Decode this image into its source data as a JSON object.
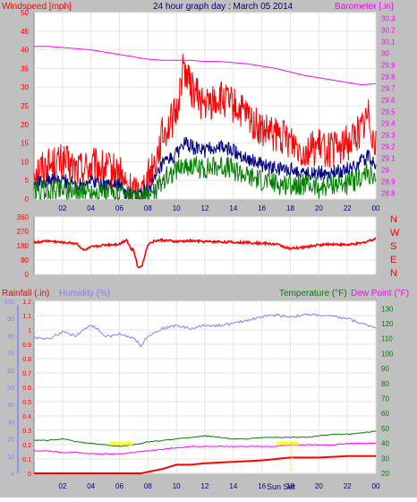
{
  "header": {
    "left_label": "Windspeed [mph]",
    "title": "24 hour graph day : March 05 2014",
    "right_label": "Barometer [.in]"
  },
  "colors": {
    "background": "#c0c0c0",
    "plot_bg": "#ffffff",
    "wind_high": "#ff0000",
    "wind_avg": "#000080",
    "wind_low": "#008000",
    "barometer": "#ff00ff",
    "direction": "#ff0000",
    "humidity": "#8080ff",
    "temperature": "#008000",
    "dewpoint": "#ff00ff",
    "rainfall": "#ff0000",
    "sun_marker": "#ffff00",
    "axis_text": "#000080"
  },
  "direction_letters": [
    "N",
    "W",
    "S",
    "E",
    "N"
  ],
  "bottom_labels": {
    "rainfall": "Rainfall (.in)",
    "humidity": "Humidity (%)",
    "temperature": "Temperature (°F)",
    "dewpoint": "Dew Point (°F)"
  },
  "sun_annotation": "Sun Set",
  "chart_data": [
    {
      "type": "line",
      "name": "wind-barometer",
      "x_ticks": [
        "02",
        "04",
        "06",
        "08",
        "10",
        "12",
        "14",
        "16",
        "18",
        "20",
        "22",
        "00"
      ],
      "x_range_hours": [
        0,
        24
      ],
      "y_left_ticks": [
        0,
        5,
        10,
        15,
        20,
        25,
        30,
        35,
        40,
        45,
        50
      ],
      "y_left_range": [
        0,
        50
      ],
      "y_right_ticks": [
        "28.8",
        "28.9",
        "29",
        "29.1",
        "29.2",
        "29.3",
        "29.4",
        "29.5",
        "29.6",
        "29.7",
        "29.8",
        "29.9",
        "30",
        "30.1",
        "30.2",
        "30.3"
      ],
      "y_right_range": [
        28.75,
        30.35
      ],
      "series": [
        {
          "key": "wind_high",
          "hours": [
            0,
            1,
            2,
            3,
            4,
            5,
            6,
            6.5,
            7,
            7.5,
            8,
            8.5,
            9,
            10,
            10.5,
            11,
            12,
            13,
            14,
            15,
            16,
            17,
            18,
            19,
            20,
            21,
            22,
            23,
            23.5,
            24
          ],
          "values": [
            8,
            9,
            10,
            8,
            9,
            8,
            7,
            3,
            2,
            2,
            6,
            10,
            17,
            23,
            36,
            30,
            25,
            27,
            25,
            22,
            18,
            17,
            16,
            13,
            14,
            13,
            15,
            19,
            23,
            14
          ]
        },
        {
          "key": "wind_avg",
          "hours": [
            0,
            1,
            2,
            3,
            4,
            5,
            6,
            6.5,
            7,
            7.5,
            8,
            8.5,
            9,
            10,
            10.5,
            11,
            12,
            13,
            14,
            15,
            16,
            17,
            18,
            19,
            20,
            21,
            22,
            23,
            23.5,
            24
          ],
          "values": [
            4,
            5,
            5,
            4,
            5,
            4,
            4,
            1,
            1,
            1,
            3,
            5,
            9,
            12,
            15,
            14,
            13,
            14,
            13,
            11,
            9,
            8,
            8,
            7,
            7,
            7,
            8,
            10,
            12,
            8
          ]
        },
        {
          "key": "wind_low",
          "hours": [
            0,
            1,
            2,
            3,
            4,
            5,
            6,
            6.5,
            7,
            7.5,
            8,
            8.5,
            9,
            10,
            10.5,
            11,
            12,
            13,
            14,
            15,
            16,
            17,
            18,
            19,
            20,
            21,
            22,
            23,
            23.5,
            24
          ],
          "values": [
            2,
            2,
            3,
            2,
            2,
            2,
            1,
            0,
            0,
            0,
            1,
            2,
            5,
            8,
            9,
            9,
            8,
            9,
            8,
            6,
            5,
            4,
            4,
            4,
            3,
            4,
            4,
            6,
            7,
            4
          ]
        },
        {
          "key": "barometer",
          "hours": [
            0,
            1,
            2,
            3,
            4,
            5,
            6,
            7,
            8,
            9,
            10,
            11,
            12,
            13,
            14,
            15,
            16,
            17,
            18,
            19,
            20,
            21,
            22,
            23,
            24
          ],
          "values": [
            30.06,
            30.06,
            30.05,
            30.04,
            30.03,
            30.01,
            29.99,
            29.97,
            29.95,
            29.94,
            29.94,
            29.94,
            29.93,
            29.93,
            29.92,
            29.91,
            29.89,
            29.87,
            29.84,
            29.81,
            29.79,
            29.77,
            29.75,
            29.73,
            29.74
          ]
        }
      ]
    },
    {
      "type": "line",
      "name": "wind-direction",
      "x_range_hours": [
        0,
        24
      ],
      "y_left_ticks": [
        0,
        90,
        180,
        270,
        360
      ],
      "y_range": [
        0,
        360
      ],
      "series": [
        {
          "key": "direction",
          "hours": [
            0,
            1,
            2,
            3,
            3.5,
            4,
            5,
            6,
            6.5,
            6.8,
            7,
            7.3,
            7.6,
            8,
            8.5,
            9,
            10,
            11,
            12,
            13,
            14,
            15,
            16,
            17,
            18,
            19,
            20,
            21,
            22,
            23,
            24
          ],
          "values": [
            200,
            210,
            200,
            195,
            150,
            170,
            185,
            190,
            220,
            160,
            150,
            40,
            60,
            190,
            210,
            215,
            205,
            210,
            205,
            205,
            200,
            200,
            195,
            190,
            160,
            170,
            185,
            190,
            185,
            195,
            225
          ]
        }
      ]
    },
    {
      "type": "line",
      "name": "rain-humidity-temperature",
      "x_ticks": [
        "02",
        "04",
        "06",
        "08",
        "10",
        "12",
        "14",
        "16",
        "18",
        "20",
        "22",
        "00"
      ],
      "x_range_hours": [
        0,
        24
      ],
      "y_outer_ticks": [
        0,
        10,
        20,
        30,
        40,
        50,
        60,
        70,
        80,
        90,
        100
      ],
      "y_outer_range": [
        0,
        100
      ],
      "y_inner_ticks": [
        "0",
        "0.1",
        "0.2",
        "0.3",
        "0.4",
        "0.5",
        "0.6",
        "0.7",
        "0.8",
        "0.9",
        "1",
        "1.1",
        "1.2"
      ],
      "y_inner_range": [
        0,
        1.2
      ],
      "y_right_ticks": [
        20,
        30,
        40,
        50,
        60,
        70,
        80,
        90,
        100,
        110,
        120,
        130
      ],
      "y_right_range": [
        20,
        135
      ],
      "series": [
        {
          "key": "humidity",
          "hours": [
            0,
            1,
            2,
            3,
            4,
            4.5,
            5,
            6,
            7,
            7.5,
            8,
            9,
            10,
            11,
            12,
            13,
            14,
            15,
            16,
            17,
            18,
            19,
            20,
            21,
            22,
            23,
            24
          ],
          "values": [
            79,
            78,
            82,
            80,
            86,
            84,
            79,
            81,
            79,
            74,
            80,
            84,
            86,
            84,
            86,
            86,
            87,
            89,
            91,
            92,
            91,
            92,
            92,
            91,
            90,
            87,
            85
          ]
        },
        {
          "key": "temperature",
          "hours": [
            0,
            1,
            2,
            3,
            4,
            5,
            6,
            7,
            8,
            9,
            10,
            11,
            12,
            13,
            14,
            15,
            16,
            17,
            18,
            19,
            20,
            21,
            22,
            23,
            24
          ],
          "values": [
            42,
            42,
            43,
            41,
            40,
            39,
            38,
            39,
            41,
            42,
            43,
            44,
            45,
            44,
            43,
            43,
            44,
            44,
            44,
            44,
            45,
            46,
            46,
            47,
            48
          ]
        },
        {
          "key": "dewpoint",
          "hours": [
            0,
            1,
            2,
            3,
            4,
            5,
            6,
            7,
            8,
            9,
            10,
            11,
            12,
            13,
            14,
            15,
            16,
            17,
            18,
            19,
            20,
            21,
            22,
            23,
            24
          ],
          "values": [
            35,
            35,
            34,
            34,
            33,
            33,
            33,
            34,
            35,
            36,
            37,
            38,
            38,
            38,
            38,
            38,
            38,
            38,
            39,
            39,
            39,
            39,
            40,
            40,
            40
          ]
        },
        {
          "key": "rainfall",
          "hours": [
            0,
            7.5,
            8,
            9,
            10,
            11,
            12,
            14,
            16,
            17,
            18,
            20,
            22,
            24
          ],
          "values": [
            0,
            0,
            0.01,
            0.03,
            0.06,
            0.06,
            0.07,
            0.08,
            0.09,
            0.1,
            0.11,
            0.11,
            0.12,
            0.12
          ]
        }
      ]
    }
  ]
}
